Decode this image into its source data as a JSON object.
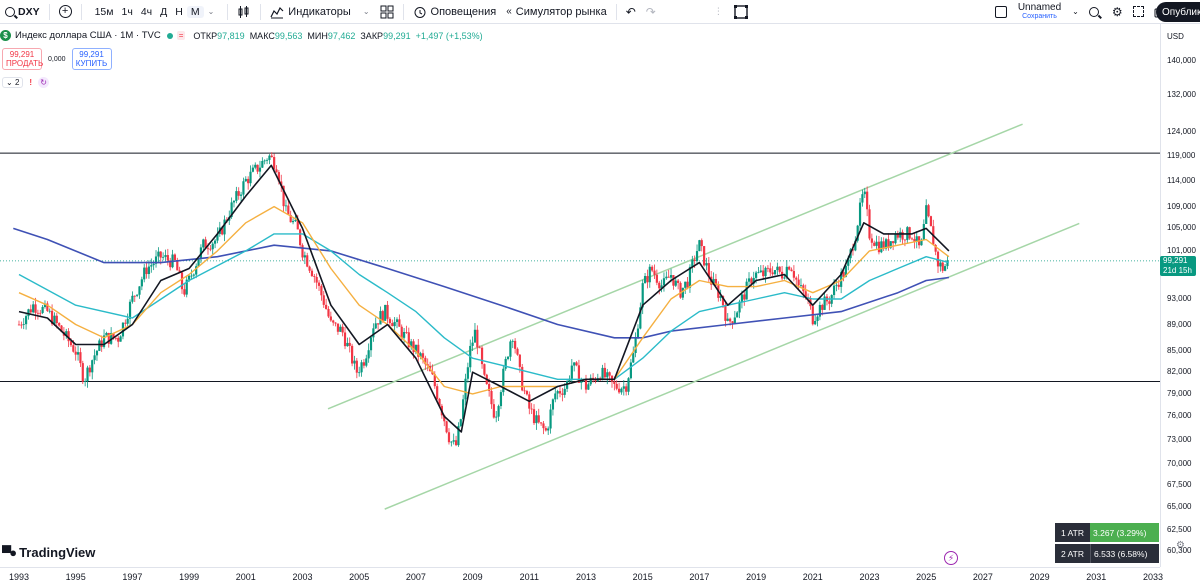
{
  "toolbar": {
    "symbol": "DXY",
    "timeframes": [
      "15м",
      "1ч",
      "4ч",
      "Д",
      "Н",
      "М"
    ],
    "active_timeframe": "М",
    "indicators_label": "Индикаторы",
    "alerts_label": "Оповещения",
    "replay_label": "Симулятор рынка",
    "layout_name": "Unnamed",
    "layout_status": "Сохранить",
    "publish_label": "Опублик"
  },
  "legend": {
    "title": "Индекс доллара США · 1М · TVC",
    "badge": "=",
    "open_label": "ОТКР",
    "open": "97,819",
    "high_label": "МАКС",
    "high": "99,563",
    "low_label": "МИН",
    "low": "97,462",
    "close_label": "ЗАКР",
    "close": "99,291",
    "change": "+1,497 (+1,53%)"
  },
  "trade": {
    "sell_price": "99,291",
    "sell_label": "ПРОДАТЬ",
    "spread": "0,000",
    "buy_price": "99,291",
    "buy_label": "КУПИТЬ"
  },
  "studies": {
    "count": "2",
    "alert": "!"
  },
  "price_axis": {
    "currency": "USD",
    "ticks": [
      "140,000",
      "132,000",
      "124,000",
      "119,000",
      "114,000",
      "109,000",
      "105,000",
      "101,000",
      "93,000",
      "89,000",
      "85,000",
      "82,000",
      "79,000",
      "76,000",
      "73,000",
      "70,000",
      "67,500",
      "65,000",
      "62,500",
      "60,300"
    ],
    "tick_values": [
      140,
      132,
      124,
      119,
      114,
      109,
      105,
      101,
      93,
      89,
      85,
      82,
      79,
      76,
      73,
      70,
      67.5,
      65,
      62.5,
      60.3
    ],
    "last_price": "99,291",
    "countdown": "21d 15h"
  },
  "time_axis": {
    "labels": [
      "1993",
      "1995",
      "1997",
      "1999",
      "2001",
      "2003",
      "2005",
      "2007",
      "2009",
      "2011",
      "2013",
      "2015",
      "2017",
      "2019",
      "2021",
      "2023",
      "2025",
      "2027",
      "2029",
      "2031",
      "2033"
    ]
  },
  "atr": {
    "row1_label": "1 ATR",
    "row1_value": "3.267 (3.29%)",
    "row2_label": "2 ATR",
    "row2_value": "6.533 (6.58%)"
  },
  "branding": {
    "logo_text": "TradingView"
  },
  "colors": {
    "up": "#089981",
    "down": "#f23645",
    "ma_black": "#131722",
    "ma_orange": "#f5b041",
    "ma_cyan": "#2bbbc9",
    "ma_blue": "#3f51b5",
    "channel": "#a5d6a7"
  },
  "chart_data": {
    "type": "candlestick",
    "title": "Индекс доллара США · 1М · TVC",
    "ylim": [
      60,
      142
    ],
    "xlim": [
      1992.8,
      2033.7
    ],
    "horizontal_levels": [
      119.5,
      80.7
    ],
    "channel_lines": [
      {
        "from": [
          2003.9,
          77.0
        ],
        "to": [
          2028.4,
          125.6
        ]
      },
      {
        "from": [
          2005.9,
          64.8
        ],
        "to": [
          2030.4,
          105.9
        ]
      }
    ],
    "price_path": [
      [
        1993.0,
        89
      ],
      [
        1993.5,
        92
      ],
      [
        1994.0,
        91
      ],
      [
        1994.5,
        88
      ],
      [
        1995.0,
        85
      ],
      [
        1995.3,
        81
      ],
      [
        1995.6,
        84
      ],
      [
        1996.0,
        87
      ],
      [
        1996.5,
        87
      ],
      [
        1997.0,
        93
      ],
      [
        1997.5,
        98
      ],
      [
        1998.0,
        100
      ],
      [
        1998.5,
        99
      ],
      [
        1998.8,
        94
      ],
      [
        1999.0,
        96
      ],
      [
        1999.5,
        102
      ],
      [
        2000.0,
        103
      ],
      [
        2000.5,
        109
      ],
      [
        2001.0,
        114
      ],
      [
        2001.5,
        117
      ],
      [
        2001.8,
        119
      ],
      [
        2002.1,
        117
      ],
      [
        2002.4,
        108
      ],
      [
        2002.8,
        105
      ],
      [
        2003.0,
        101
      ],
      [
        2003.4,
        97
      ],
      [
        2003.8,
        92
      ],
      [
        2004.0,
        89
      ],
      [
        2004.4,
        88
      ],
      [
        2004.9,
        82
      ],
      [
        2005.2,
        84
      ],
      [
        2005.5,
        89
      ],
      [
        2005.9,
        91
      ],
      [
        2006.3,
        89
      ],
      [
        2006.8,
        86
      ],
      [
        2007.2,
        84
      ],
      [
        2007.6,
        81
      ],
      [
        2007.9,
        77
      ],
      [
        2008.2,
        73
      ],
      [
        2008.4,
        72
      ],
      [
        2008.6,
        76
      ],
      [
        2008.9,
        85
      ],
      [
        2009.1,
        88
      ],
      [
        2009.4,
        81
      ],
      [
        2009.8,
        76
      ],
      [
        2010.0,
        80
      ],
      [
        2010.4,
        88
      ],
      [
        2010.7,
        81
      ],
      [
        2011.0,
        77
      ],
      [
        2011.3,
        75
      ],
      [
        2011.6,
        74
      ],
      [
        2011.9,
        79
      ],
      [
        2012.3,
        80
      ],
      [
        2012.5,
        83
      ],
      [
        2013.0,
        80
      ],
      [
        2013.5,
        82
      ],
      [
        2014.0,
        80
      ],
      [
        2014.4,
        80
      ],
      [
        2014.7,
        85
      ],
      [
        2015.0,
        95
      ],
      [
        2015.3,
        98
      ],
      [
        2015.7,
        95
      ],
      [
        2016.0,
        97
      ],
      [
        2016.3,
        94
      ],
      [
        2016.6,
        96
      ],
      [
        2016.9,
        101
      ],
      [
        2017.0,
        102
      ],
      [
        2017.4,
        96
      ],
      [
        2017.8,
        93
      ],
      [
        2018.0,
        89
      ],
      [
        2018.3,
        91
      ],
      [
        2018.6,
        94
      ],
      [
        2018.9,
        97
      ],
      [
        2019.3,
        97
      ],
      [
        2019.6,
        98
      ],
      [
        2019.9,
        97
      ],
      [
        2020.2,
        99
      ],
      [
        2020.5,
        95
      ],
      [
        2020.8,
        93
      ],
      [
        2021.0,
        90
      ],
      [
        2021.3,
        92
      ],
      [
        2021.6,
        93
      ],
      [
        2021.9,
        96
      ],
      [
        2022.2,
        98
      ],
      [
        2022.5,
        104
      ],
      [
        2022.8,
        112
      ],
      [
        2023.0,
        104
      ],
      [
        2023.3,
        102
      ],
      [
        2023.6,
        102
      ],
      [
        2023.9,
        104
      ],
      [
        2024.2,
        104
      ],
      [
        2024.5,
        104
      ],
      [
        2024.8,
        101
      ],
      [
        2025.0,
        108
      ],
      [
        2025.2,
        104
      ],
      [
        2025.4,
        99
      ],
      [
        2025.6,
        98
      ],
      [
        2025.8,
        99.3
      ]
    ],
    "ma_black": [
      [
        1993.0,
        91
      ],
      [
        1994.0,
        90
      ],
      [
        1995.0,
        86
      ],
      [
        1996.0,
        86
      ],
      [
        1997.0,
        89
      ],
      [
        1998.0,
        96
      ],
      [
        1999.0,
        98
      ],
      [
        2000.0,
        104
      ],
      [
        2001.0,
        111
      ],
      [
        2001.9,
        117
      ],
      [
        2003.0,
        105
      ],
      [
        2004.0,
        92
      ],
      [
        2005.0,
        86
      ],
      [
        2006.0,
        89
      ],
      [
        2007.0,
        84
      ],
      [
        2008.0,
        76
      ],
      [
        2008.6,
        74
      ],
      [
        2009.0,
        82
      ],
      [
        2010.0,
        80
      ],
      [
        2011.0,
        78
      ],
      [
        2012.0,
        80
      ],
      [
        2013.0,
        81
      ],
      [
        2014.0,
        81
      ],
      [
        2015.0,
        92
      ],
      [
        2016.0,
        96
      ],
      [
        2017.0,
        99
      ],
      [
        2018.0,
        92
      ],
      [
        2019.0,
        96
      ],
      [
        2020.0,
        97
      ],
      [
        2021.0,
        92
      ],
      [
        2022.0,
        97
      ],
      [
        2022.8,
        106
      ],
      [
        2023.5,
        104
      ],
      [
        2024.5,
        104
      ],
      [
        2025.0,
        105
      ],
      [
        2025.8,
        101
      ]
    ],
    "ma_orange": [
      [
        1993.0,
        94
      ],
      [
        1994.0,
        92
      ],
      [
        1995.0,
        89
      ],
      [
        1996.0,
        87
      ],
      [
        1997.0,
        89
      ],
      [
        1998.0,
        94
      ],
      [
        1999.0,
        97
      ],
      [
        2000.0,
        101
      ],
      [
        2001.0,
        106
      ],
      [
        2002.0,
        109
      ],
      [
        2003.0,
        106
      ],
      [
        2004.0,
        98
      ],
      [
        2005.0,
        92
      ],
      [
        2006.0,
        89
      ],
      [
        2007.0,
        85
      ],
      [
        2008.0,
        80
      ],
      [
        2009.0,
        79
      ],
      [
        2010.0,
        80
      ],
      [
        2011.0,
        80
      ],
      [
        2012.0,
        80
      ],
      [
        2013.0,
        81
      ],
      [
        2014.0,
        81
      ],
      [
        2015.0,
        87
      ],
      [
        2016.0,
        93
      ],
      [
        2017.0,
        96
      ],
      [
        2018.0,
        95
      ],
      [
        2019.0,
        95
      ],
      [
        2020.0,
        96
      ],
      [
        2021.0,
        94
      ],
      [
        2022.0,
        96
      ],
      [
        2023.0,
        101
      ],
      [
        2024.0,
        102
      ],
      [
        2025.0,
        103
      ],
      [
        2025.8,
        100
      ]
    ],
    "ma_cyan": [
      [
        1993.0,
        97
      ],
      [
        1995.0,
        92
      ],
      [
        1997.0,
        90
      ],
      [
        1999.0,
        96
      ],
      [
        2001.0,
        101
      ],
      [
        2002.0,
        104
      ],
      [
        2003.0,
        104
      ],
      [
        2004.0,
        101
      ],
      [
        2005.0,
        97
      ],
      [
        2006.0,
        94
      ],
      [
        2007.0,
        91
      ],
      [
        2008.0,
        87
      ],
      [
        2009.0,
        84
      ],
      [
        2010.0,
        83
      ],
      [
        2011.0,
        82
      ],
      [
        2012.0,
        81
      ],
      [
        2013.0,
        81
      ],
      [
        2014.0,
        81
      ],
      [
        2015.0,
        84
      ],
      [
        2016.0,
        88
      ],
      [
        2017.0,
        91
      ],
      [
        2018.0,
        92
      ],
      [
        2019.0,
        93
      ],
      [
        2020.0,
        94
      ],
      [
        2021.0,
        93
      ],
      [
        2022.0,
        93
      ],
      [
        2023.0,
        96
      ],
      [
        2024.0,
        98
      ],
      [
        2025.0,
        100
      ],
      [
        2025.8,
        99
      ]
    ],
    "ma_blue": [
      [
        1992.8,
        105
      ],
      [
        1994.0,
        103
      ],
      [
        1996.0,
        99
      ],
      [
        1998.0,
        99
      ],
      [
        2000.0,
        100
      ],
      [
        2002.0,
        102
      ],
      [
        2004.0,
        101
      ],
      [
        2006.0,
        98
      ],
      [
        2008.0,
        95
      ],
      [
        2010.0,
        92
      ],
      [
        2012.0,
        89
      ],
      [
        2014.0,
        87
      ],
      [
        2015.0,
        87
      ],
      [
        2016.0,
        88
      ],
      [
        2018.0,
        89
      ],
      [
        2020.0,
        90
      ],
      [
        2022.0,
        91
      ],
      [
        2024.0,
        94
      ],
      [
        2025.0,
        96
      ],
      [
        2025.8,
        96.5
      ]
    ]
  }
}
